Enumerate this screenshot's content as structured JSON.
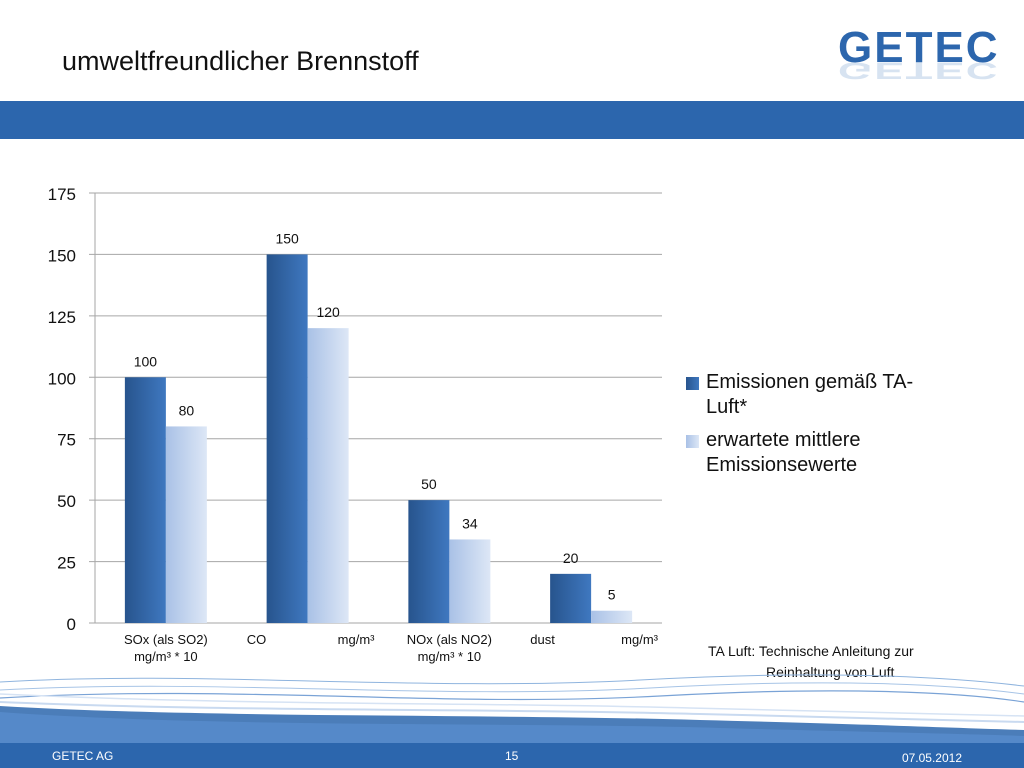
{
  "slide": {
    "title": "umweltfreundlicher Brennstoff"
  },
  "logo": {
    "text": "GETEC"
  },
  "colors": {
    "brand_blue": "#2c66ad",
    "series1": "#2f62a3",
    "series2": "#bcd0ec"
  },
  "chart_data": {
    "type": "bar",
    "categories": [
      [
        "SOx (als SO2)",
        "mg/m³ * 10"
      ],
      [
        "CO",
        "mg/m³"
      ],
      [
        "NOx (als NO2)",
        "mg/m³ * 10"
      ],
      [
        "dust",
        "mg/m³"
      ]
    ],
    "series": [
      {
        "name": "Emissionen gemäß TA-Luft*",
        "legend_lines": [
          "Emissionen gemäß TA-",
          "Luft*"
        ],
        "values": [
          100,
          150,
          50,
          20
        ],
        "color": "#2f62a3"
      },
      {
        "name": "erwartete mittlere Emissionsewerte",
        "legend_lines": [
          "erwartete mittlere",
          "Emissionsewerte"
        ],
        "values": [
          80,
          120,
          34,
          5
        ],
        "color": "#bcd0ec"
      }
    ],
    "ylim": [
      0,
      175
    ],
    "yticks": [
      0,
      25,
      50,
      75,
      100,
      125,
      150,
      175
    ],
    "grid": true,
    "legend_position": "right"
  },
  "footnote": {
    "line1": "TA Luft: Technische Anleitung zur",
    "line2": "Reinhaltung von Luft"
  },
  "footer": {
    "company": "GETEC AG",
    "page": "15",
    "date": "07.05.2012"
  }
}
